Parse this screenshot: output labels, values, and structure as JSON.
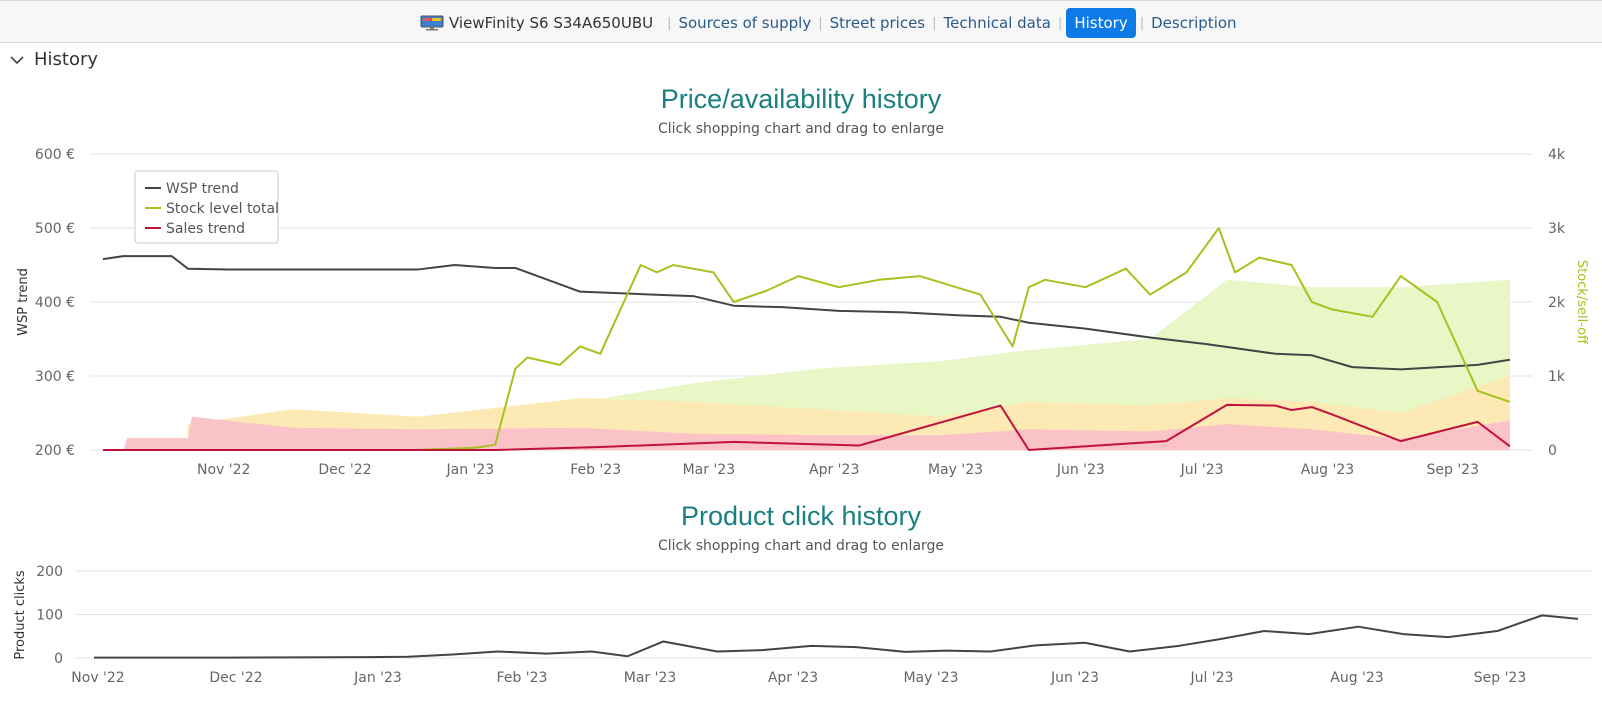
{
  "nav": {
    "product": "ViewFinity S6 S34A650UBU",
    "product_icon": "monitor-icon",
    "links": [
      "Sources of supply",
      "Street prices",
      "Technical data",
      "History",
      "Description"
    ],
    "active": "History",
    "accent": "#0d7ae8"
  },
  "section": {
    "title": "History",
    "icon": "chevron-down-icon"
  },
  "price_chart": {
    "title": "Price/availability history",
    "subtitle": "Click shopping chart and drag to enlarge"
  },
  "click_chart": {
    "title": "Product click history",
    "subtitle": "Click shopping chart and drag to enlarge"
  },
  "chart_data": [
    {
      "type": "line",
      "title": "Price/availability history",
      "subtitle": "Click shopping chart and drag to enlarge",
      "x_ticks": [
        "Nov '22",
        "Dec '22",
        "Jan '23",
        "Feb '23",
        "Mar '23",
        "Apr '23",
        "May '23",
        "Jun '23",
        "Jul '23",
        "Aug '23",
        "Sep '23"
      ],
      "ylabel": "WSP trend",
      "ylim": [
        200,
        600
      ],
      "y_ticks": [
        "200 €",
        "300 €",
        "400 €",
        "500 €",
        "600 €"
      ],
      "y2label": "Stock/sell-off",
      "y2lim": [
        0,
        4000
      ],
      "y2_ticks": [
        "0",
        "1k",
        "2k",
        "3k",
        "4k"
      ],
      "legend": {
        "placement": "top-left",
        "entries": [
          "WSP trend",
          "Stock level total",
          "Sales trend"
        ]
      },
      "grid": true,
      "colors": {
        "wsp": "#444444",
        "stock": "#a6c21f",
        "sales": "#c0123c",
        "area_green": "#e9f6c6",
        "area_yellow": "#fde9b3",
        "area_red": "#fac3c8"
      },
      "series": [
        {
          "name": "WSP trend",
          "axis": "left",
          "x": [
            "2022-10-15",
            "2022-10-20",
            "2022-11-01",
            "2022-11-05",
            "2022-11-15",
            "2022-12-01",
            "2022-12-15",
            "2023-01-01",
            "2023-01-10",
            "2023-01-20",
            "2023-01-25",
            "2023-02-10",
            "2023-02-28",
            "2023-03-10",
            "2023-03-20",
            "2023-04-01",
            "2023-04-15",
            "2023-05-01",
            "2023-05-15",
            "2023-05-25",
            "2023-06-01",
            "2023-06-15",
            "2023-07-01",
            "2023-07-15",
            "2023-08-01",
            "2023-08-10",
            "2023-08-20",
            "2023-09-01",
            "2023-09-20",
            "2023-09-28"
          ],
          "values": [
            458,
            462,
            462,
            445,
            444,
            444,
            444,
            444,
            450,
            446,
            446,
            414,
            410,
            408,
            395,
            393,
            388,
            386,
            382,
            380,
            372,
            364,
            352,
            343,
            330,
            328,
            312,
            309,
            315,
            322
          ]
        },
        {
          "name": "Stock level total",
          "axis": "right",
          "x": [
            "2022-10-15",
            "2022-12-31",
            "2023-01-15",
            "2023-01-20",
            "2023-01-25",
            "2023-01-28",
            "2023-02-05",
            "2023-02-10",
            "2023-02-15",
            "2023-02-25",
            "2023-03-01",
            "2023-03-05",
            "2023-03-10",
            "2023-03-15",
            "2023-03-20",
            "2023-03-28",
            "2023-04-05",
            "2023-04-15",
            "2023-04-25",
            "2023-05-05",
            "2023-05-20",
            "2023-05-28",
            "2023-06-01",
            "2023-06-05",
            "2023-06-15",
            "2023-06-25",
            "2023-07-01",
            "2023-07-10",
            "2023-07-18",
            "2023-07-22",
            "2023-07-28",
            "2023-08-05",
            "2023-08-10",
            "2023-08-15",
            "2023-08-25",
            "2023-09-01",
            "2023-09-10",
            "2023-09-20",
            "2023-09-28"
          ],
          "values": [
            0,
            0,
            30,
            70,
            1100,
            1250,
            1150,
            1400,
            1300,
            2500,
            2400,
            2500,
            2450,
            2400,
            2000,
            2150,
            2350,
            2200,
            2300,
            2350,
            2100,
            1400,
            2200,
            2300,
            2200,
            2450,
            2100,
            2400,
            3000,
            2400,
            2600,
            2500,
            2000,
            1900,
            1800,
            2350,
            2000,
            800,
            650
          ]
        },
        {
          "name": "Sales trend",
          "axis": "right",
          "x": [
            "2022-10-15",
            "2023-01-20",
            "2023-02-15",
            "2023-03-20",
            "2023-04-20",
            "2023-05-25",
            "2023-06-01",
            "2023-07-05",
            "2023-07-20",
            "2023-08-01",
            "2023-08-05",
            "2023-08-10",
            "2023-08-15",
            "2023-09-01",
            "2023-09-20",
            "2023-09-28"
          ],
          "values": [
            0,
            0,
            40,
            110,
            60,
            600,
            0,
            120,
            610,
            600,
            540,
            580,
            480,
            120,
            380,
            50
          ]
        }
      ]
    },
    {
      "type": "line",
      "title": "Product click history",
      "subtitle": "Click shopping chart and drag to enlarge",
      "ylabel": "Product clicks",
      "ylim": [
        0,
        200
      ],
      "y_ticks": [
        "0",
        "100",
        "200"
      ],
      "x_ticks": [
        "Nov '22",
        "Dec '22",
        "Jan '23",
        "Feb '23",
        "Mar '23",
        "Apr '23",
        "May '23",
        "Jun '23",
        "Jul '23",
        "Aug '23",
        "Sep '23"
      ],
      "grid": true,
      "series": [
        {
          "name": "Product clicks",
          "x": [
            "2022-11-01",
            "2022-12-01",
            "2023-01-01",
            "2023-01-10",
            "2023-01-20",
            "2023-01-30",
            "2023-02-10",
            "2023-02-20",
            "2023-02-28",
            "2023-03-08",
            "2023-03-20",
            "2023-03-30",
            "2023-04-10",
            "2023-04-20",
            "2023-05-01",
            "2023-05-10",
            "2023-05-20",
            "2023-05-30",
            "2023-06-10",
            "2023-06-20",
            "2023-07-01",
            "2023-07-10",
            "2023-07-20",
            "2023-07-30",
            "2023-08-10",
            "2023-08-20",
            "2023-08-30",
            "2023-09-10",
            "2023-09-20",
            "2023-09-28"
          ],
          "values": [
            1,
            1,
            2,
            3,
            8,
            15,
            10,
            15,
            4,
            38,
            15,
            18,
            28,
            25,
            14,
            17,
            15,
            29,
            35,
            15,
            28,
            43,
            62,
            55,
            72,
            55,
            48,
            62,
            98,
            90
          ]
        }
      ]
    }
  ]
}
